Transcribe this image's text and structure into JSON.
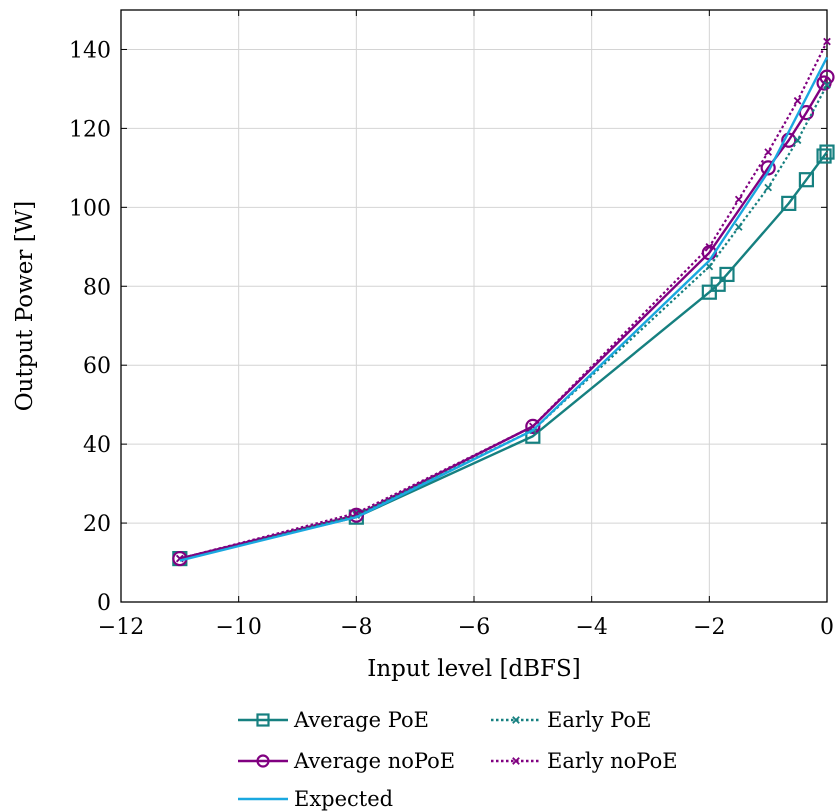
{
  "chart_data": {
    "type": "line",
    "xlabel": "Input level [dBFS]",
    "ylabel": "Output Power [W]",
    "xlim": [
      -12,
      0
    ],
    "ylim": [
      0,
      150
    ],
    "xticks": [
      -12,
      -10,
      -8,
      -6,
      -4,
      -2,
      0
    ],
    "xtick_labels": [
      "−12",
      "−10",
      "−8",
      "−6",
      "−4",
      "−2",
      "0"
    ],
    "yticks": [
      0,
      20,
      40,
      60,
      80,
      100,
      120,
      140
    ],
    "ytick_labels": [
      "0",
      "20",
      "40",
      "60",
      "80",
      "100",
      "120",
      "140"
    ],
    "grid": true,
    "legend_position": "below",
    "series": [
      {
        "name": "Average PoE",
        "color": "#168080",
        "style": "solid",
        "marker": "square",
        "x": [
          -11,
          -8,
          -5,
          -2,
          -1.85,
          -1.7,
          -0.65,
          -0.35,
          -0.05,
          0
        ],
        "y": [
          11,
          21.5,
          42,
          78.5,
          80.5,
          83,
          101,
          107,
          113,
          114
        ]
      },
      {
        "name": "Average noPoE",
        "color": "#800080",
        "style": "solid",
        "marker": "circle",
        "x": [
          -11,
          -8,
          -5,
          -2,
          -1,
          -0.65,
          -0.35,
          -0.05,
          0
        ],
        "y": [
          11,
          22,
          44.5,
          88.5,
          110,
          117,
          124,
          131.5,
          133
        ]
      },
      {
        "name": "Expected",
        "color": "#1aa8e0",
        "style": "solid",
        "marker": "none",
        "x": [
          -11,
          -8,
          -5,
          -2,
          -1,
          0
        ],
        "y": [
          10.5,
          21.5,
          43.5,
          86.5,
          109,
          138
        ]
      },
      {
        "name": "Early PoE",
        "color": "#168080",
        "style": "dotted",
        "marker": "cross",
        "x": [
          -11,
          -8,
          -5,
          -2,
          -1.5,
          -1,
          -0.5,
          0
        ],
        "y": [
          11,
          22,
          43.5,
          85,
          95,
          105,
          117,
          131
        ]
      },
      {
        "name": "Early noPoE",
        "color": "#800080",
        "style": "dotted",
        "marker": "cross",
        "x": [
          -11,
          -8,
          -5,
          -2,
          -1.5,
          -1,
          -0.5,
          0
        ],
        "y": [
          11,
          22.5,
          44.5,
          90,
          102,
          114,
          127,
          142
        ]
      }
    ]
  }
}
